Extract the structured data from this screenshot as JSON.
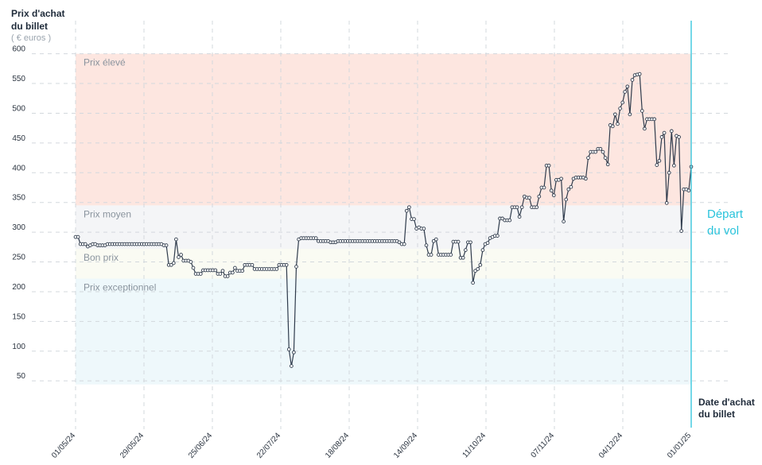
{
  "chart_data": {
    "type": "line",
    "y_title": [
      "Prix d'achat",
      "du billet"
    ],
    "y_unit": "( € euros )",
    "x_title": [
      "Date d'achat",
      "du billet"
    ],
    "departure_label": [
      "Départ",
      "du vol"
    ],
    "y_ticks": [
      50,
      100,
      150,
      200,
      250,
      300,
      350,
      400,
      450,
      500,
      550,
      600
    ],
    "ylim": [
      0,
      600
    ],
    "x_tick_labels": [
      "01/05/24",
      "29/05/24",
      "25/06/24",
      "22/07/24",
      "18/08/24",
      "14/09/24",
      "11/10/24",
      "07/11/24",
      "04/12/24",
      "01/01/25"
    ],
    "x_range_days": [
      0,
      245
    ],
    "zones": [
      {
        "label": "Prix élevé",
        "from": 345,
        "to": 600,
        "color": "#fde6e0"
      },
      {
        "label": "Prix moyen",
        "from": 272,
        "to": 345,
        "color": "#f4f5f7"
      },
      {
        "label": "Bon prix",
        "from": 222,
        "to": 272,
        "color": "#fafbf3"
      },
      {
        "label": "Prix exceptionnel",
        "from": 44,
        "to": 222,
        "color": "#eef8fb"
      }
    ],
    "grid": true,
    "departure_line_color": "#29c3db",
    "line_color": "#2f3b4c",
    "series": [
      {
        "values": [
          292,
          292,
          280,
          280,
          280,
          276,
          278,
          280,
          280,
          278,
          278,
          278,
          278,
          280,
          280,
          280,
          280,
          280,
          280,
          280,
          280,
          280,
          280,
          280,
          280,
          280,
          280,
          280,
          280,
          280,
          280,
          280,
          280,
          280,
          280,
          280,
          278,
          278,
          245,
          245,
          248,
          288,
          258,
          262,
          252,
          252,
          252,
          250,
          240,
          230,
          230,
          230,
          236,
          236,
          236,
          236,
          236,
          236,
          230,
          230,
          235,
          226,
          226,
          232,
          232,
          240,
          235,
          235,
          235,
          245,
          245,
          245,
          245,
          238,
          238,
          238,
          238,
          238,
          238,
          238,
          238,
          238,
          238,
          245,
          245,
          245,
          245,
          103,
          75,
          98,
          242,
          288,
          290,
          290,
          290,
          290,
          290,
          290,
          290,
          285,
          285,
          285,
          285,
          285,
          283,
          283,
          283,
          285,
          285,
          285,
          285,
          285,
          285,
          285,
          285,
          285,
          285,
          285,
          285,
          285,
          285,
          285,
          285,
          285,
          285,
          285,
          285,
          285,
          285,
          285,
          285,
          285,
          283,
          280,
          280,
          336,
          342,
          322,
          322,
          306,
          308,
          306,
          306,
          278,
          262,
          262,
          285,
          288,
          262,
          262,
          262,
          262,
          262,
          262,
          284,
          284,
          284,
          257,
          257,
          270,
          283,
          283,
          215,
          235,
          238,
          245,
          270,
          280,
          282,
          290,
          292,
          294,
          294,
          323,
          323,
          320,
          320,
          320,
          342,
          342,
          342,
          326,
          342,
          360,
          358,
          358,
          342,
          342,
          342,
          360,
          375,
          375,
          412,
          412,
          370,
          362,
          388,
          388,
          390,
          318,
          355,
          372,
          376,
          390,
          392,
          392,
          392,
          392,
          390,
          425,
          435,
          435,
          435,
          440,
          440,
          435,
          425,
          414,
          480,
          478,
          498,
          482,
          508,
          518,
          536,
          545,
          498,
          556,
          564,
          565,
          566,
          504,
          474,
          490,
          490,
          490,
          490,
          413,
          420,
          460,
          467,
          349,
          400,
          470,
          412,
          462,
          460,
          302,
          372,
          372,
          370,
          410
        ]
      }
    ]
  }
}
